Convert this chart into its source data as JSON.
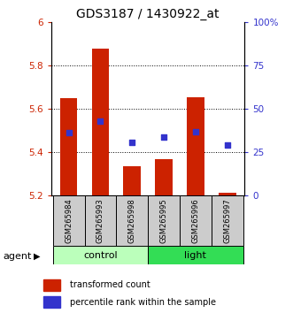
{
  "title": "GDS3187 / 1430922_at",
  "samples": [
    "GSM265984",
    "GSM265993",
    "GSM265998",
    "GSM265995",
    "GSM265996",
    "GSM265997"
  ],
  "bar_bottom": 5.2,
  "bar_tops": [
    5.65,
    5.875,
    5.335,
    5.37,
    5.655,
    5.215
  ],
  "percentile_y": [
    5.49,
    5.545,
    5.445,
    5.47,
    5.495,
    5.432
  ],
  "ylim": [
    5.2,
    6.0
  ],
  "yticks_left": [
    5.2,
    5.4,
    5.6,
    5.8,
    6.0
  ],
  "ytick_labels_left": [
    "5.2",
    "5.4",
    "5.6",
    "5.8",
    "6"
  ],
  "yticks_right_vals": [
    0,
    25,
    50,
    75,
    100
  ],
  "ytick_labels_right": [
    "0",
    "25",
    "50",
    "75",
    "100%"
  ],
  "bar_color": "#cc2200",
  "dot_color": "#3333cc",
  "control_color": "#bbffbb",
  "light_color": "#33dd55",
  "sample_box_color": "#cccccc",
  "legend_bar": "transformed count",
  "legend_dot": "percentile rank within the sample",
  "title_fontsize": 10,
  "tick_fontsize": 7.5,
  "sample_fontsize": 6,
  "group_fontsize": 8,
  "legend_fontsize": 7
}
